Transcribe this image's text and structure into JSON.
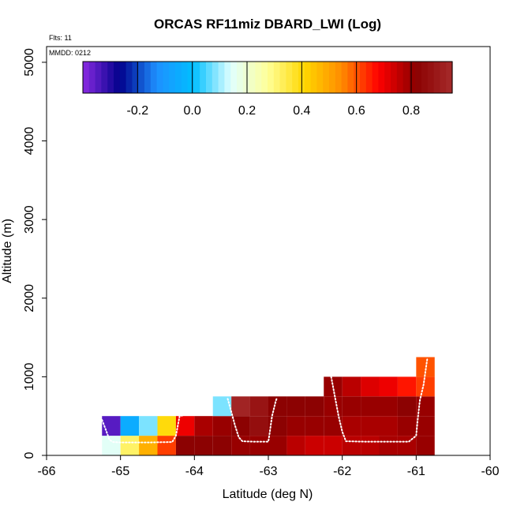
{
  "chart_data": {
    "type": "heatmap",
    "title": "ORCAS RF11miz DBARD_LWI (Log)",
    "annotations": {
      "flights": "Flts: 11",
      "date": "MMDD: 0212"
    },
    "xlabel": "Latitude (deg N)",
    "ylabel": "Altitude (m)",
    "xlim": [
      -66,
      -60
    ],
    "ylim": [
      0,
      5200
    ],
    "x_ticks": [
      -66,
      -65,
      -64,
      -63,
      -62,
      -61,
      -60
    ],
    "x_tick_labels": [
      "-66",
      "-65",
      "-64",
      "-63",
      "-62",
      "-61",
      "-60"
    ],
    "y_ticks": [
      0,
      1000,
      2000,
      3000,
      4000,
      5000
    ],
    "y_tick_labels": [
      "0",
      "1000",
      "2000",
      "3000",
      "4000",
      "5000"
    ],
    "colorbar": {
      "min": -0.4,
      "max": 0.95,
      "ticks": [
        -0.2,
        0.0,
        0.2,
        0.4,
        0.6,
        0.8
      ],
      "tick_labels": [
        "-0.2",
        "0.0",
        "0.2",
        "0.4",
        "0.6",
        "0.8"
      ],
      "colors": [
        "#8a2be2",
        "#00008b",
        "#1e90ff",
        "#00bfff",
        "#e0ffff",
        "#ffff99",
        "#ffd700",
        "#ff8c00",
        "#ff0000",
        "#8b0000",
        "#a52a2a"
      ]
    },
    "bin_width_deg": 0.25,
    "bin_height_m": 250,
    "cells": [
      {
        "lat": -65.25,
        "alt": 0,
        "value": 0.15
      },
      {
        "lat": -65.0,
        "alt": 0,
        "value": 0.32
      },
      {
        "lat": -64.75,
        "alt": 0,
        "value": 0.48
      },
      {
        "lat": -64.5,
        "alt": 0,
        "value": 0.62
      },
      {
        "lat": -64.25,
        "alt": 0,
        "value": 0.82
      },
      {
        "lat": -64.0,
        "alt": 0,
        "value": 0.82
      },
      {
        "lat": -63.75,
        "alt": 0,
        "value": 0.82
      },
      {
        "lat": -63.5,
        "alt": 0,
        "value": 0.8
      },
      {
        "lat": -63.25,
        "alt": 0,
        "value": 0.8
      },
      {
        "lat": -63.0,
        "alt": 0,
        "value": 0.8
      },
      {
        "lat": -62.75,
        "alt": 0,
        "value": 0.76
      },
      {
        "lat": -62.5,
        "alt": 0,
        "value": 0.74
      },
      {
        "lat": -62.25,
        "alt": 0,
        "value": 0.74
      },
      {
        "lat": -62.0,
        "alt": 0,
        "value": 0.76
      },
      {
        "lat": -61.75,
        "alt": 0,
        "value": 0.76
      },
      {
        "lat": -61.5,
        "alt": 0,
        "value": 0.78
      },
      {
        "lat": -61.25,
        "alt": 0,
        "value": 0.78
      },
      {
        "lat": -61.0,
        "alt": 0,
        "value": 0.8
      },
      {
        "lat": -65.25,
        "alt": 250,
        "value": -0.35
      },
      {
        "lat": -65.0,
        "alt": 250,
        "value": -0.05
      },
      {
        "lat": -64.75,
        "alt": 250,
        "value": 0.08
      },
      {
        "lat": -64.5,
        "alt": 250,
        "value": 0.4
      },
      {
        "lat": -64.25,
        "alt": 250,
        "value": 0.7
      },
      {
        "lat": -64.0,
        "alt": 250,
        "value": 0.78
      },
      {
        "lat": -63.75,
        "alt": 250,
        "value": 0.8
      },
      {
        "lat": -63.5,
        "alt": 250,
        "value": 0.82
      },
      {
        "lat": -63.25,
        "alt": 250,
        "value": 0.86
      },
      {
        "lat": -63.0,
        "alt": 250,
        "value": 0.82
      },
      {
        "lat": -62.75,
        "alt": 250,
        "value": 0.8
      },
      {
        "lat": -62.5,
        "alt": 250,
        "value": 0.8
      },
      {
        "lat": -62.25,
        "alt": 250,
        "value": 0.8
      },
      {
        "lat": -62.0,
        "alt": 250,
        "value": 0.78
      },
      {
        "lat": -61.75,
        "alt": 250,
        "value": 0.78
      },
      {
        "lat": -61.5,
        "alt": 250,
        "value": 0.78
      },
      {
        "lat": -61.25,
        "alt": 250,
        "value": 0.8
      },
      {
        "lat": -61.0,
        "alt": 250,
        "value": 0.8
      },
      {
        "lat": -63.75,
        "alt": 500,
        "value": 0.08
      },
      {
        "lat": -63.5,
        "alt": 500,
        "value": 0.93
      },
      {
        "lat": -63.25,
        "alt": 500,
        "value": 0.88
      },
      {
        "lat": -63.0,
        "alt": 500,
        "value": 0.82
      },
      {
        "lat": -62.75,
        "alt": 500,
        "value": 0.82
      },
      {
        "lat": -62.5,
        "alt": 500,
        "value": 0.82
      },
      {
        "lat": -62.25,
        "alt": 500,
        "value": 0.8
      },
      {
        "lat": -62.0,
        "alt": 500,
        "value": 0.8
      },
      {
        "lat": -61.75,
        "alt": 500,
        "value": 0.8
      },
      {
        "lat": -61.5,
        "alt": 500,
        "value": 0.8
      },
      {
        "lat": -61.25,
        "alt": 500,
        "value": 0.82
      },
      {
        "lat": -61.0,
        "alt": 500,
        "value": 0.8
      },
      {
        "lat": -62.25,
        "alt": 750,
        "value": 0.8
      },
      {
        "lat": -62.0,
        "alt": 750,
        "value": 0.76
      },
      {
        "lat": -61.75,
        "alt": 750,
        "value": 0.72
      },
      {
        "lat": -61.5,
        "alt": 750,
        "value": 0.7
      },
      {
        "lat": -61.25,
        "alt": 750,
        "value": 0.66
      },
      {
        "lat": -61.0,
        "alt": 750,
        "value": 0.62
      },
      {
        "lat": -61.0,
        "alt": 1000,
        "value": 0.6
      }
    ],
    "flight_track": [
      [
        -65.25,
        450
      ],
      [
        -65.2,
        330
      ],
      [
        -65.15,
        200
      ],
      [
        -65.1,
        170
      ],
      [
        -65.0,
        165
      ],
      [
        -64.8,
        165
      ],
      [
        -64.6,
        165
      ],
      [
        -64.45,
        168
      ],
      [
        -64.3,
        170
      ],
      [
        -64.25,
        250
      ],
      [
        -64.22,
        400
      ],
      [
        -64.2,
        500
      ],
      [
        -64.15,
        510
      ]
    ],
    "flight_track_2": [
      [
        -63.55,
        720
      ],
      [
        -63.5,
        550
      ],
      [
        -63.45,
        380
      ],
      [
        -63.4,
        230
      ],
      [
        -63.35,
        180
      ],
      [
        -63.2,
        175
      ],
      [
        -63.0,
        175
      ],
      [
        -62.98,
        300
      ],
      [
        -62.95,
        500
      ],
      [
        -62.9,
        690
      ],
      [
        -62.88,
        740
      ]
    ],
    "flight_track_3": [
      [
        -62.15,
        1000
      ],
      [
        -62.1,
        750
      ],
      [
        -62.05,
        500
      ],
      [
        -62.0,
        300
      ],
      [
        -61.95,
        180
      ],
      [
        -61.7,
        175
      ],
      [
        -61.4,
        175
      ],
      [
        -61.1,
        175
      ],
      [
        -61.0,
        250
      ],
      [
        -60.98,
        450
      ],
      [
        -60.95,
        700
      ],
      [
        -60.9,
        900
      ],
      [
        -60.85,
        1230
      ]
    ]
  }
}
